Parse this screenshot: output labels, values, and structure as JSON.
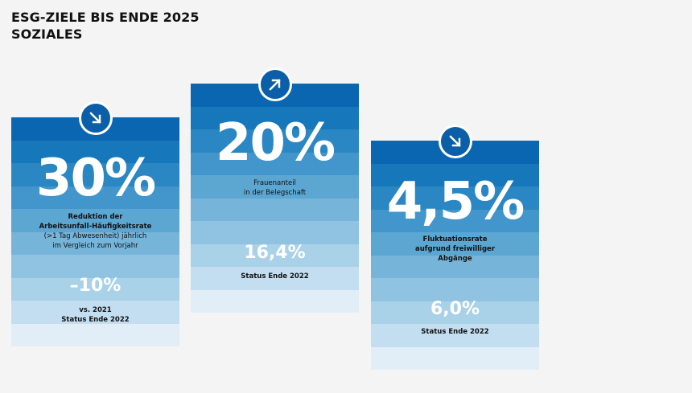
{
  "header": {
    "title_line1": "ESG-ZIELE BIS ENDE 2025",
    "title_line2": "SOZIALES"
  },
  "colors": {
    "stripes": [
      "#0b66b1",
      "#1777bb",
      "#2b87c3",
      "#4396cb",
      "#5ca6d2",
      "#76b4da",
      "#8fc3e1",
      "#a9d1e8",
      "#c3def0",
      "#e1eef7"
    ],
    "badge": "#0b5ea8"
  },
  "cards": [
    {
      "arrow": "arrow-down-right-icon",
      "value": "30%",
      "desc_line1": "Reduktion der",
      "desc_line2": "Arbeitsunfall-Häufigkeitsrate",
      "desc_line3": "(>1 Tag Abwesenheit) jährlich",
      "desc_line4": "im Vergleich zum Vorjahr",
      "status_value": "–10%",
      "status_line1": "vs. 2021",
      "status_line2": "Status Ende 2022"
    },
    {
      "arrow": "arrow-up-right-icon",
      "value": "20%",
      "desc_line1": "Frauenanteil",
      "desc_line2": "in der Belegschaft",
      "status_value": "16,4%",
      "status_line1": "Status Ende 2022"
    },
    {
      "arrow": "arrow-down-right-icon",
      "value": "4,5%",
      "desc_line1": "Fluktuationsrate",
      "desc_line2": "aufgrund freiwilliger",
      "desc_line3": "Abgänge",
      "status_value": "6,0%",
      "status_line1": "Status Ende 2022"
    }
  ]
}
